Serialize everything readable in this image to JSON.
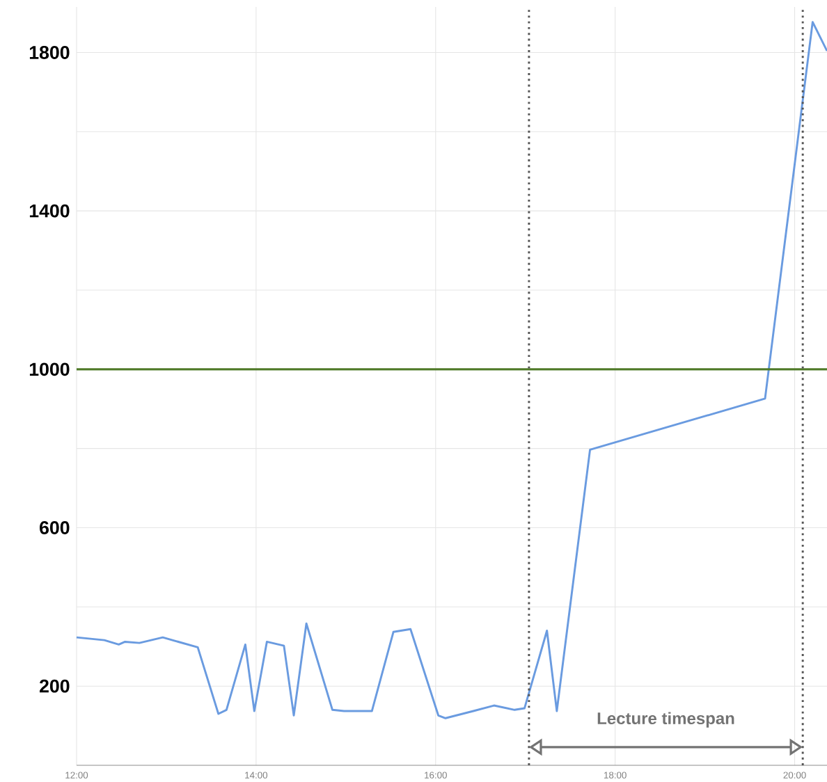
{
  "chart_data": {
    "type": "line",
    "x": [
      12.0,
      12.31,
      12.47,
      12.54,
      12.7,
      12.96,
      13.35,
      13.58,
      13.67,
      13.88,
      13.98,
      14.12,
      14.31,
      14.42,
      14.56,
      14.85,
      14.98,
      15.29,
      15.53,
      15.72,
      16.03,
      16.11,
      16.42,
      16.65,
      16.88,
      16.99,
      17.24,
      17.35,
      17.72,
      19.67,
      20.2,
      20.36
    ],
    "series": [
      {
        "color": "#6a9be0",
        "values": [
          323,
          316,
          305,
          312,
          309,
          323,
          298,
          130,
          140,
          305,
          137,
          312,
          302,
          126,
          358,
          140,
          137,
          137,
          337,
          344,
          126,
          119,
          137,
          151,
          140,
          144,
          340,
          137,
          797,
          926,
          1877,
          1804
        ]
      }
    ],
    "xlim": [
      12,
      20.36
    ],
    "ylim": [
      0,
      1915
    ],
    "xticks": [
      {
        "value": 12,
        "label": "12:00"
      },
      {
        "value": 14,
        "label": "14:00"
      },
      {
        "value": 16,
        "label": "16:00"
      },
      {
        "value": 18,
        "label": "18:00"
      },
      {
        "value": 20,
        "label": "20:00"
      }
    ],
    "yticks": [
      200,
      {
        "value": 400,
        "label": null
      },
      600,
      {
        "value": 800,
        "label": null
      },
      1000,
      {
        "value": 1200,
        "label": null
      },
      1400,
      {
        "value": 1600,
        "label": null
      },
      1800
    ],
    "grid": true,
    "marker": "none",
    "line_style": "solid",
    "ref_lines": [
      {
        "axis": "y",
        "value": 1000,
        "color": "#4f7a28",
        "line_style": "solid"
      },
      {
        "axis": "x",
        "value": 17.04,
        "color": "#555555",
        "line_style": "dotted"
      },
      {
        "axis": "x",
        "value": 20.09,
        "color": "#555555",
        "line_style": "dotted"
      }
    ],
    "annotations": [
      "Lecture timespan"
    ]
  }
}
